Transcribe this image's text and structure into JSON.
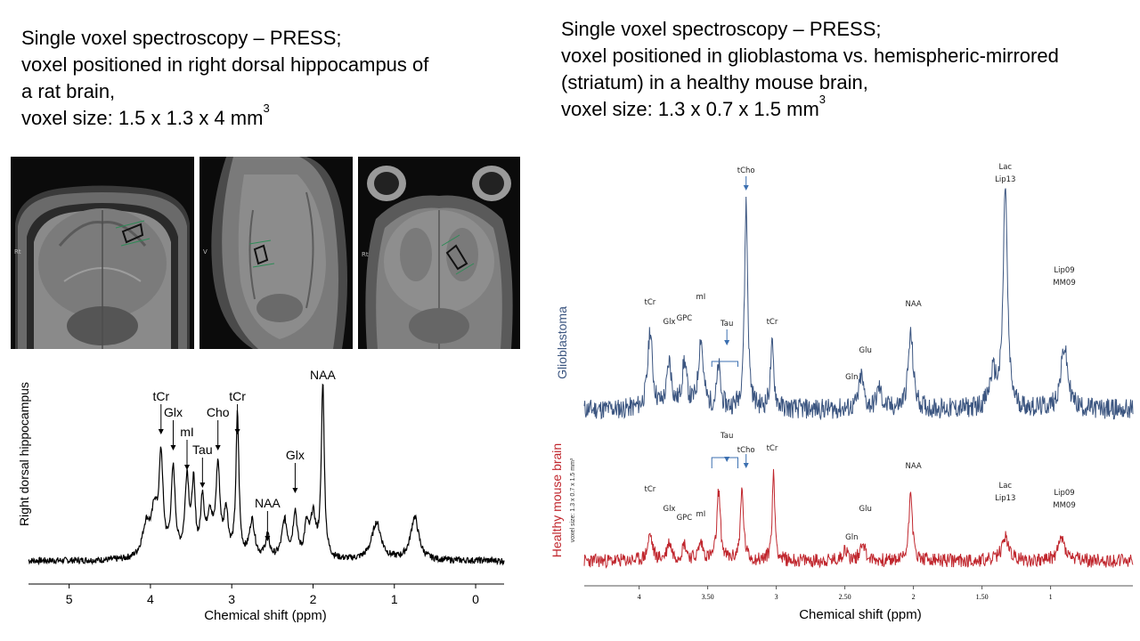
{
  "left_caption": {
    "line1": "Single voxel spectroscopy – PRESS;",
    "line2": "voxel positioned in right dorsal hippocampus of",
    "line3": "a rat brain,",
    "line4": "voxel size: 1.5 x 1.3 x 4 mm",
    "sup": "3"
  },
  "right_caption": {
    "line1": "Single voxel spectroscopy – PRESS;",
    "line2": "voxel positioned in glioblastoma vs. hemispheric-mirrored",
    "line3": "(striatum) in a healthy mouse brain,",
    "line4": "voxel size: 1.3 x 0.7 x 1.5 mm",
    "sup": "3"
  },
  "mri_images": {
    "coronal_label": "Rt",
    "sagittal_label": "V",
    "axial_label": "Rt",
    "voxel_color": "#2e8b57"
  },
  "chart_data": [
    {
      "type": "line",
      "title": "",
      "xlabel": "Chemical shift (ppm)",
      "ylabel": "Right dorsal hippocampus",
      "xlim": [
        5.5,
        -0.35
      ],
      "xticks": [
        "5",
        "4",
        "3",
        "2",
        "1",
        "0"
      ],
      "xtick_values": [
        5,
        4,
        3,
        2,
        1,
        0
      ],
      "baseline": 0,
      "peaks": [
        {
          "ppm": 3.87,
          "height": 0.52,
          "width": 0.03
        },
        {
          "ppm": 3.72,
          "height": 0.46,
          "width": 0.03
        },
        {
          "ppm": 3.55,
          "height": 0.42,
          "width": 0.03
        },
        {
          "ppm": 3.47,
          "height": 0.37,
          "width": 0.025
        },
        {
          "ppm": 3.36,
          "height": 0.3,
          "width": 0.025
        },
        {
          "ppm": 3.17,
          "height": 0.47,
          "width": 0.03
        },
        {
          "ppm": 3.07,
          "height": 0.24,
          "width": 0.03
        },
        {
          "ppm": 2.93,
          "height": 0.76,
          "width": 0.022
        },
        {
          "ppm": 2.75,
          "height": 0.2,
          "width": 0.04
        },
        {
          "ppm": 2.56,
          "height": 0.12,
          "width": 0.03
        },
        {
          "ppm": 2.35,
          "height": 0.2,
          "width": 0.04
        },
        {
          "ppm": 2.22,
          "height": 0.24,
          "width": 0.03
        },
        {
          "ppm": 2.08,
          "height": 0.16,
          "width": 0.03
        },
        {
          "ppm": 2.0,
          "height": 0.22,
          "width": 0.04
        },
        {
          "ppm": 1.88,
          "height": 0.93,
          "width": 0.022
        },
        {
          "ppm": 1.22,
          "height": 0.2,
          "width": 0.07
        },
        {
          "ppm": 0.75,
          "height": 0.23,
          "width": 0.06
        },
        {
          "ppm": 4.05,
          "height": 0.18,
          "width": 0.06
        },
        {
          "ppm": 3.95,
          "height": 0.22,
          "width": 0.04
        },
        {
          "ppm": 3.27,
          "height": 0.22,
          "width": 0.04
        }
      ],
      "annotations": [
        {
          "label": "tCr",
          "ppm": 3.87
        },
        {
          "label": "Glx",
          "ppm": 3.72
        },
        {
          "label": "mI",
          "ppm": 3.55
        },
        {
          "label": "Tau",
          "ppm": 3.36
        },
        {
          "label": "Cho",
          "ppm": 3.17
        },
        {
          "label": "tCr",
          "ppm": 2.93
        },
        {
          "label": "NAA",
          "ppm": 2.56
        },
        {
          "label": "Glx",
          "ppm": 2.22
        },
        {
          "label": "NAA",
          "ppm": 1.88
        }
      ]
    },
    {
      "type": "line",
      "title": "",
      "xlabel": "Chemical shift (ppm)",
      "xlim": [
        4.4,
        0.4
      ],
      "xticks": [
        "4",
        "3.50",
        "3",
        "2.50",
        "2",
        "1.50",
        "1"
      ],
      "xtick_values": [
        4,
        3.5,
        3,
        2.5,
        2,
        1.5,
        1
      ],
      "series": [
        {
          "name": "Glioblastoma",
          "color": "#3b5580",
          "peaks": [
            {
              "ppm": 3.92,
              "height": 0.38,
              "width": 0.02
            },
            {
              "ppm": 3.78,
              "height": 0.22,
              "width": 0.02
            },
            {
              "ppm": 3.67,
              "height": 0.22,
              "width": 0.02
            },
            {
              "ppm": 3.55,
              "height": 0.34,
              "width": 0.02
            },
            {
              "ppm": 3.42,
              "height": 0.2,
              "width": 0.015
            },
            {
              "ppm": 3.22,
              "height": 1.0,
              "width": 0.014
            },
            {
              "ppm": 3.03,
              "height": 0.3,
              "width": 0.015
            },
            {
              "ppm": 2.38,
              "height": 0.16,
              "width": 0.02
            },
            {
              "ppm": 2.25,
              "height": 0.1,
              "width": 0.02
            },
            {
              "ppm": 2.02,
              "height": 0.36,
              "width": 0.022
            },
            {
              "ppm": 1.33,
              "height": 1.08,
              "width": 0.018
            },
            {
              "ppm": 1.42,
              "height": 0.16,
              "width": 0.03
            },
            {
              "ppm": 0.9,
              "height": 0.3,
              "width": 0.03
            }
          ],
          "annotations": [
            {
              "label": "tCr",
              "ppm": 3.92
            },
            {
              "label": "Glx",
              "ppm": 3.78
            },
            {
              "label": "GPC",
              "ppm": 3.67
            },
            {
              "label": "mI",
              "ppm": 3.55
            },
            {
              "label": "Tau",
              "ppm": 3.36
            },
            {
              "label": "tCho",
              "ppm": 3.22
            },
            {
              "label": "tCr",
              "ppm": 3.03
            },
            {
              "label": "Gln",
              "ppm": 2.45
            },
            {
              "label": "Glu",
              "ppm": 2.35
            },
            {
              "label": "NAA",
              "ppm": 2.0
            },
            {
              "label": "Lac",
              "ppm": 1.33
            },
            {
              "label": "Lip13",
              "ppm": 1.33
            },
            {
              "label": "Lip09",
              "ppm": 0.9
            },
            {
              "label": "MM09",
              "ppm": 0.9
            }
          ]
        },
        {
          "name": "Healthy mouse brain",
          "subtitle": "voxel size: 1.3 x 0.7 x 1.5 mm³",
          "color": "#c0262d",
          "peaks": [
            {
              "ppm": 3.92,
              "height": 0.26,
              "width": 0.02
            },
            {
              "ppm": 3.78,
              "height": 0.18,
              "width": 0.02
            },
            {
              "ppm": 3.67,
              "height": 0.16,
              "width": 0.02
            },
            {
              "ppm": 3.55,
              "height": 0.17,
              "width": 0.02
            },
            {
              "ppm": 3.42,
              "height": 0.7,
              "width": 0.015
            },
            {
              "ppm": 3.25,
              "height": 0.7,
              "width": 0.014
            },
            {
              "ppm": 3.02,
              "height": 0.86,
              "width": 0.012
            },
            {
              "ppm": 2.5,
              "height": 0.12,
              "width": 0.02
            },
            {
              "ppm": 2.37,
              "height": 0.2,
              "width": 0.02
            },
            {
              "ppm": 2.02,
              "height": 0.75,
              "width": 0.014
            },
            {
              "ppm": 1.33,
              "height": 0.24,
              "width": 0.03
            },
            {
              "ppm": 0.92,
              "height": 0.22,
              "width": 0.03
            }
          ],
          "annotations": [
            {
              "label": "tCr",
              "ppm": 3.92
            },
            {
              "label": "Glx",
              "ppm": 3.78
            },
            {
              "label": "GPC",
              "ppm": 3.67
            },
            {
              "label": "mI",
              "ppm": 3.55
            },
            {
              "label": "Tau",
              "ppm": 3.36
            },
            {
              "label": "tCho",
              "ppm": 3.22
            },
            {
              "label": "tCr",
              "ppm": 3.03
            },
            {
              "label": "Gln",
              "ppm": 2.45
            },
            {
              "label": "Glu",
              "ppm": 2.35
            },
            {
              "label": "NAA",
              "ppm": 2.0
            },
            {
              "label": "Lac",
              "ppm": 1.33
            },
            {
              "label": "Lip13",
              "ppm": 1.33
            },
            {
              "label": "Lip09",
              "ppm": 0.9
            },
            {
              "label": "MM09",
              "ppm": 0.9
            }
          ]
        }
      ]
    }
  ]
}
